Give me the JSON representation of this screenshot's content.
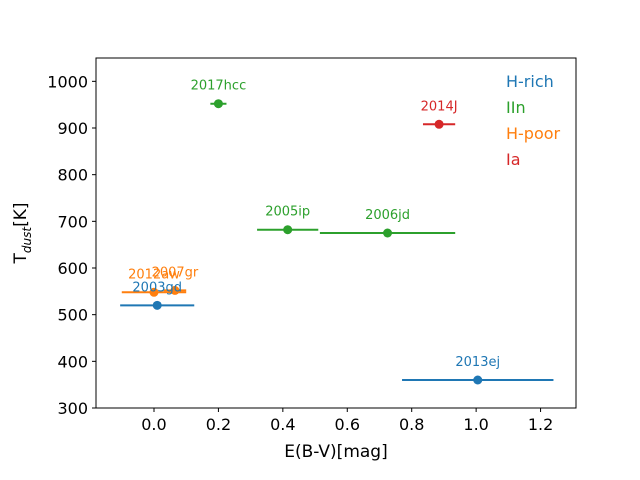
{
  "chart_data": {
    "type": "scatter",
    "title": "",
    "xlabel": "E(B-V)[mag]",
    "ylabel": {
      "base": "T",
      "sub": "dust",
      "rest": "[K]"
    },
    "xlim": [
      -0.18,
      1.31
    ],
    "ylim": [
      300,
      1050
    ],
    "xticks": [
      0.0,
      0.2,
      0.4,
      0.6,
      0.8,
      1.0,
      1.2
    ],
    "xtick_labels": [
      "0.0",
      "0.2",
      "0.4",
      "0.6",
      "0.8",
      "1.0",
      "1.2"
    ],
    "yticks": [
      300,
      400,
      500,
      600,
      700,
      800,
      900,
      1000
    ],
    "ytick_labels": [
      "300",
      "400",
      "500",
      "600",
      "700",
      "800",
      "900",
      "1000"
    ],
    "grid": false,
    "legend_position": "top-right",
    "legend": [
      {
        "name": "H-rich",
        "color": "#1f77b4"
      },
      {
        "name": "IIn",
        "color": "#2ca02c"
      },
      {
        "name": "H-poor",
        "color": "#ff7f0e"
      },
      {
        "name": "Ia",
        "color": "#d62728"
      }
    ],
    "points": [
      {
        "name": "2003gd",
        "group": "H-rich",
        "color": "#1f77b4",
        "x": 0.01,
        "y": 520,
        "xerr": 0.115
      },
      {
        "name": "2013ej",
        "group": "H-rich",
        "color": "#1f77b4",
        "x": 1.005,
        "y": 360,
        "xerr": 0.235
      },
      {
        "name": "2012aw",
        "group": "H-poor",
        "color": "#ff7f0e",
        "x": 0.0,
        "y": 548,
        "xerr": 0.1
      },
      {
        "name": "2007gr",
        "group": "H-poor",
        "color": "#ff7f0e",
        "x": 0.065,
        "y": 552,
        "xerr": 0.035
      },
      {
        "name": "2017hcc",
        "group": "IIn",
        "color": "#2ca02c",
        "x": 0.2,
        "y": 952,
        "xerr": 0.025
      },
      {
        "name": "2005ip",
        "group": "IIn",
        "color": "#2ca02c",
        "x": 0.415,
        "y": 682,
        "xerr": 0.095
      },
      {
        "name": "2006jd",
        "group": "IIn",
        "color": "#2ca02c",
        "x": 0.725,
        "y": 675,
        "xerr": 0.21
      },
      {
        "name": "2014J",
        "group": "Ia",
        "color": "#d62728",
        "x": 0.885,
        "y": 908,
        "xerr": 0.05
      }
    ]
  }
}
